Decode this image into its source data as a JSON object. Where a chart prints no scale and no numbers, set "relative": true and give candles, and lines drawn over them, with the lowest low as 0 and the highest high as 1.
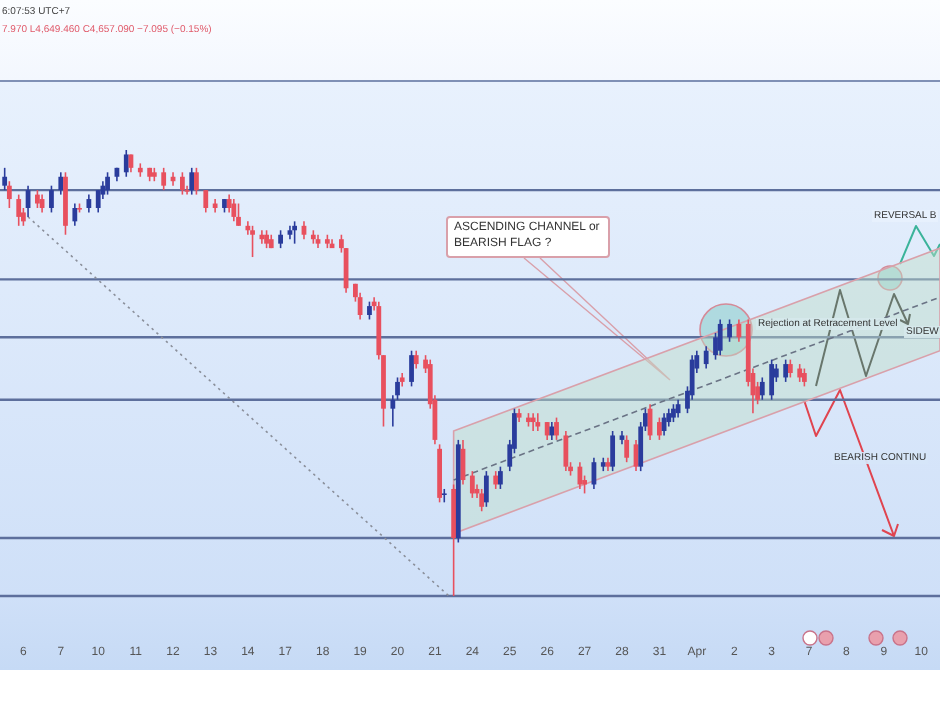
{
  "chart_data": {
    "type": "candlestick",
    "relative": true,
    "categories": [
      null,
      null,
      null,
      null,
      null,
      "6",
      null,
      null,
      null,
      null,
      null,
      null,
      null,
      "7",
      null,
      null,
      null,
      null,
      null,
      null,
      null,
      "10",
      null,
      null,
      null,
      null,
      null,
      null,
      null,
      "11",
      null,
      null,
      null,
      null,
      null,
      null,
      null,
      "12",
      null,
      null,
      null,
      null,
      null,
      null,
      null,
      "13",
      null,
      null,
      null,
      null,
      null,
      null,
      null,
      "14",
      null,
      null,
      null,
      null,
      null,
      null,
      null,
      "17",
      null,
      null,
      null,
      null,
      null,
      null,
      null,
      "18",
      null,
      null,
      null,
      null,
      null,
      null,
      null,
      "19",
      null,
      null,
      null,
      null,
      null,
      null,
      null,
      "20",
      null,
      null,
      null,
      null,
      null,
      null,
      null,
      "21",
      null,
      null,
      null,
      null,
      null,
      null,
      null,
      "24",
      null,
      null,
      null,
      null,
      null,
      null,
      null,
      "25",
      null,
      null,
      null,
      null,
      null,
      null,
      null,
      "26",
      null,
      null,
      null,
      null,
      null,
      null,
      null,
      "27",
      null,
      null,
      null,
      null,
      null,
      null,
      null,
      "28",
      null,
      null,
      null,
      null,
      null,
      null,
      null,
      "31",
      null,
      null,
      null,
      null,
      null,
      null,
      null,
      "Apr",
      null,
      null,
      null,
      null,
      null,
      null,
      null,
      "2",
      null,
      null,
      null,
      null,
      null,
      null,
      null,
      "3",
      null,
      null,
      null,
      null,
      null,
      null,
      null,
      "7",
      null,
      null,
      null,
      null,
      null,
      null,
      null,
      "8",
      null,
      null,
      null,
      null,
      null,
      null,
      null,
      "9",
      null,
      null,
      null,
      null,
      null,
      null,
      null,
      "10",
      null,
      null,
      null,
      null
    ],
    "ohlc": [
      null,
      [
        0.92,
        0.96,
        0.91,
        0.94
      ],
      [
        0.92,
        0.93,
        0.87,
        0.89
      ],
      null,
      [
        0.89,
        0.9,
        0.83,
        0.85
      ],
      [
        0.86,
        0.87,
        0.83,
        0.84
      ],
      [
        0.87,
        0.92,
        0.85,
        0.91
      ],
      null,
      [
        0.9,
        0.91,
        0.87,
        0.88
      ],
      [
        0.89,
        0.9,
        0.86,
        0.87
      ],
      null,
      [
        0.87,
        0.92,
        0.86,
        0.91
      ],
      null,
      [
        0.91,
        0.95,
        0.9,
        0.94
      ],
      [
        0.94,
        0.95,
        0.81,
        0.83
      ],
      null,
      [
        0.84,
        0.88,
        0.83,
        0.87
      ],
      [
        0.87,
        0.88,
        0.86,
        0.87
      ],
      null,
      [
        0.87,
        0.9,
        0.86,
        0.89
      ],
      null,
      [
        0.87,
        0.91,
        0.86,
        0.91
      ],
      [
        0.9,
        0.93,
        0.89,
        0.92
      ],
      [
        0.91,
        0.95,
        0.9,
        0.94
      ],
      null,
      [
        0.94,
        0.96,
        0.93,
        0.96
      ],
      null,
      [
        0.95,
        1,
        0.94,
        0.99
      ],
      [
        0.99,
        0.99,
        0.95,
        0.96
      ],
      null,
      [
        0.96,
        0.97,
        0.94,
        0.95
      ],
      null,
      [
        0.96,
        0.96,
        0.93,
        0.94
      ],
      [
        0.95,
        0.96,
        0.93,
        0.94
      ],
      null,
      [
        0.95,
        0.96,
        0.91,
        0.92
      ],
      null,
      [
        0.94,
        0.95,
        0.92,
        0.93
      ],
      null,
      [
        0.94,
        0.95,
        0.9,
        0.91
      ],
      [
        0.91,
        0.92,
        0.9,
        0.91
      ],
      [
        0.91,
        0.96,
        0.9,
        0.95
      ],
      [
        0.95,
        0.96,
        0.9,
        0.91
      ],
      null,
      [
        0.91,
        0.91,
        0.86,
        0.87
      ],
      null,
      [
        0.88,
        0.89,
        0.86,
        0.87
      ],
      null,
      [
        0.87,
        0.89,
        0.86,
        0.89
      ],
      [
        0.89,
        0.9,
        0.86,
        0.87
      ],
      [
        0.88,
        0.89,
        0.84,
        0.85
      ],
      [
        0.85,
        0.88,
        0.83,
        0.83
      ],
      null,
      [
        0.83,
        0.84,
        0.81,
        0.82
      ],
      [
        0.82,
        0.83,
        0.76,
        0.81
      ],
      null,
      [
        0.81,
        0.82,
        0.79,
        0.8
      ],
      [
        0.81,
        0.82,
        0.78,
        0.79
      ],
      [
        0.8,
        0.81,
        0.78,
        0.78
      ],
      null,
      [
        0.79,
        0.82,
        0.78,
        0.81
      ],
      null,
      [
        0.81,
        0.83,
        0.8,
        0.82
      ],
      [
        0.82,
        0.84,
        0.79,
        0.83
      ],
      null,
      [
        0.83,
        0.84,
        0.8,
        0.81
      ],
      null,
      [
        0.81,
        0.82,
        0.79,
        0.8
      ],
      [
        0.8,
        0.81,
        0.78,
        0.79
      ],
      null,
      [
        0.8,
        0.81,
        0.78,
        0.79
      ],
      [
        0.79,
        0.8,
        0.78,
        0.78
      ],
      null,
      [
        0.8,
        0.81,
        0.77,
        0.78
      ],
      [
        0.78,
        0.78,
        0.68,
        0.69
      ],
      null,
      [
        0.7,
        0.7,
        0.66,
        0.67
      ],
      [
        0.67,
        0.68,
        0.62,
        0.63
      ],
      null,
      [
        0.63,
        0.66,
        0.62,
        0.65
      ],
      [
        0.66,
        0.67,
        0.64,
        0.65
      ],
      [
        0.65,
        0.66,
        0.53,
        0.54
      ],
      [
        0.54,
        0.54,
        0.38,
        0.42
      ],
      null,
      [
        0.42,
        0.45,
        0.38,
        0.44
      ],
      [
        0.45,
        0.49,
        0.44,
        0.48
      ],
      [
        0.49,
        0.5,
        0.47,
        0.48
      ],
      null,
      [
        0.48,
        0.55,
        0.47,
        0.54
      ],
      [
        0.54,
        0.55,
        0.51,
        0.52
      ],
      null,
      [
        0.53,
        0.54,
        0.5,
        0.51
      ],
      [
        0.52,
        0.53,
        0.42,
        0.43
      ],
      [
        0.44,
        0.45,
        0.34,
        0.35
      ],
      [
        0.33,
        0.34,
        0.21,
        0.22
      ],
      [
        0.23,
        0.24,
        0.21,
        0.23
      ],
      null,
      [
        0.24,
        0.25,
        0,
        0.13
      ],
      [
        0.13,
        0.35,
        0.12,
        0.34
      ],
      [
        0.33,
        0.35,
        0.25,
        0.26
      ],
      null,
      [
        0.27,
        0.28,
        0.22,
        0.23
      ],
      [
        0.24,
        0.25,
        0.22,
        0.23
      ],
      [
        0.23,
        0.24,
        0.19,
        0.2
      ],
      [
        0.21,
        0.28,
        0.2,
        0.27
      ],
      null,
      [
        0.27,
        0.28,
        0.24,
        0.25
      ],
      [
        0.25,
        0.29,
        0.24,
        0.28
      ],
      null,
      [
        0.29,
        0.35,
        0.28,
        0.34
      ],
      [
        0.33,
        0.42,
        0.32,
        0.41
      ],
      [
        0.41,
        0.42,
        0.39,
        0.4
      ],
      null,
      [
        0.4,
        0.41,
        0.38,
        0.39
      ],
      [
        0.4,
        0.41,
        0.37,
        0.39
      ],
      [
        0.39,
        0.41,
        0.37,
        0.38
      ],
      null,
      [
        0.39,
        0.39,
        0.35,
        0.36
      ],
      [
        0.36,
        0.39,
        0.35,
        0.38
      ],
      [
        0.39,
        0.4,
        0.35,
        0.36
      ],
      null,
      [
        0.36,
        0.37,
        0.28,
        0.29
      ],
      [
        0.29,
        0.3,
        0.27,
        0.28
      ],
      null,
      [
        0.29,
        0.3,
        0.24,
        0.25
      ],
      [
        0.26,
        0.27,
        0.23,
        0.25
      ],
      null,
      [
        0.25,
        0.31,
        0.24,
        0.3
      ],
      null,
      [
        0.29,
        0.31,
        0.28,
        0.3
      ],
      [
        0.3,
        0.31,
        0.28,
        0.29
      ],
      [
        0.29,
        0.37,
        0.28,
        0.36
      ],
      null,
      [
        0.35,
        0.37,
        0.34,
        0.36
      ],
      [
        0.35,
        0.36,
        0.3,
        0.31
      ],
      null,
      [
        0.34,
        0.35,
        0.28,
        0.29
      ],
      [
        0.29,
        0.39,
        0.28,
        0.38
      ],
      [
        0.38,
        0.42,
        0.37,
        0.41
      ],
      [
        0.42,
        0.43,
        0.35,
        0.36
      ],
      null,
      [
        0.39,
        0.4,
        0.35,
        0.36
      ],
      [
        0.37,
        0.41,
        0.36,
        0.4
      ],
      [
        0.39,
        0.42,
        0.38,
        0.41
      ],
      [
        0.4,
        0.43,
        0.39,
        0.42
      ],
      [
        0.41,
        0.44,
        0.4,
        0.43
      ],
      null,
      [
        0.42,
        0.47,
        0.41,
        0.46
      ],
      [
        0.45,
        0.54,
        0.44,
        0.53
      ],
      [
        0.51,
        0.55,
        0.5,
        0.54
      ],
      null,
      [
        0.52,
        0.56,
        0.51,
        0.55
      ],
      null,
      [
        0.54,
        0.59,
        0.53,
        0.58
      ],
      [
        0.55,
        0.62,
        0.54,
        0.61
      ],
      null,
      [
        0.58,
        0.62,
        0.57,
        0.61
      ],
      null,
      [
        0.61,
        0.62,
        0.57,
        0.58
      ],
      null,
      [
        0.61,
        0.62,
        0.47,
        0.48
      ],
      [
        0.5,
        0.51,
        0.41,
        0.45
      ],
      [
        0.47,
        0.48,
        0.43,
        0.44
      ],
      [
        0.45,
        0.49,
        0.44,
        0.48
      ],
      null,
      [
        0.45,
        0.53,
        0.44,
        0.52
      ],
      [
        0.49,
        0.52,
        0.48,
        0.51
      ],
      null,
      [
        0.49,
        0.53,
        0.48,
        0.52
      ],
      [
        0.52,
        0.53,
        0.49,
        0.5
      ],
      null,
      [
        0.51,
        0.52,
        0.48,
        0.49
      ],
      [
        0.5,
        0.51,
        0.47,
        0.48
      ],
      null,
      null,
      null,
      null,
      null,
      null,
      null,
      null,
      null,
      null,
      null,
      null,
      null,
      null,
      null,
      null,
      null,
      null,
      null,
      null,
      null,
      null,
      null,
      null,
      null,
      null,
      null,
      null,
      null
    ],
    "colors": [
      null,
      "#2a3c9c",
      "#e8505e",
      null,
      "#e8505e",
      "#e8505e",
      "#2a3c9c",
      null,
      "#e8505e",
      "#e8505e",
      null,
      "#2a3c9c",
      null,
      "#2a3c9c",
      "#e8505e",
      null,
      "#2a3c9c",
      "#e8505e",
      null,
      "#2a3c9c",
      null,
      "#2a3c9c",
      "#2a3c9c",
      "#2a3c9c",
      null,
      "#2a3c9c",
      null,
      "#2a3c9c",
      "#e8505e",
      null,
      "#e8505e",
      null,
      "#e8505e",
      "#e8505e",
      null,
      "#e8505e",
      null,
      "#e8505e",
      null,
      "#e8505e",
      "#e8505e",
      "#2a3c9c",
      "#e8505e",
      null,
      "#e8505e",
      null,
      "#e8505e",
      null,
      "#2a3c9c",
      "#e8505e",
      "#e8505e",
      "#e8505e",
      null,
      "#e8505e",
      "#e8505e",
      null,
      "#e8505e",
      "#e8505e",
      "#e8505e",
      null,
      "#2a3c9c",
      null,
      "#2a3c9c",
      "#2a3c9c",
      null,
      "#e8505e",
      null,
      "#e8505e",
      "#e8505e",
      null,
      "#e8505e",
      "#e8505e",
      null,
      "#e8505e",
      "#e8505e",
      null,
      "#e8505e",
      "#e8505e",
      null,
      "#2a3c9c",
      "#e8505e",
      "#e8505e",
      "#e8505e",
      null,
      "#2a3c9c",
      "#2a3c9c",
      "#e8505e",
      null,
      "#2a3c9c",
      "#e8505e",
      null,
      "#e8505e",
      "#e8505e",
      "#e8505e",
      "#e8505e",
      "#2a3c9c",
      null,
      "#e8505e",
      "#2a3c9c",
      "#e8505e",
      null,
      "#e8505e",
      "#e8505e",
      "#e8505e",
      "#2a3c9c",
      null,
      "#e8505e",
      "#2a3c9c",
      null,
      "#2a3c9c",
      "#2a3c9c",
      "#e8505e",
      null,
      "#e8505e",
      "#e8505e",
      "#e8505e",
      null,
      "#e8505e",
      "#2a3c9c",
      "#e8505e",
      null,
      "#e8505e",
      "#e8505e",
      null,
      "#e8505e",
      "#e8505e",
      null,
      "#2a3c9c",
      null,
      "#2a3c9c",
      "#e8505e",
      "#2a3c9c",
      null,
      "#2a3c9c",
      "#e8505e",
      null,
      "#e8505e",
      "#2a3c9c",
      "#2a3c9c",
      "#e8505e",
      null,
      "#e8505e",
      "#2a3c9c",
      "#2a3c9c",
      "#2a3c9c",
      "#2a3c9c",
      null,
      "#2a3c9c",
      "#2a3c9c",
      "#2a3c9c",
      null,
      "#2a3c9c",
      null,
      "#2a3c9c",
      "#2a3c9c",
      null,
      "#2a3c9c",
      null,
      "#e8505e",
      null,
      "#e8505e",
      "#e8505e",
      "#e8505e",
      "#2a3c9c",
      null,
      "#2a3c9c",
      "#2a3c9c",
      null,
      "#2a3c9c",
      "#e8505e",
      null,
      "#e8505e",
      "#e8505e",
      null,
      null,
      null,
      null,
      null,
      null,
      null,
      null,
      null,
      null,
      null,
      null,
      null,
      null,
      null,
      null,
      null,
      null,
      null,
      null,
      null,
      null,
      null,
      null,
      null,
      null,
      null,
      null,
      null
    ],
    "series": [
      {
        "type": "line",
        "color": "#8a8f9a",
        "line_style": "dotted",
        "values": [
          null,
          null,
          null,
          null,
          null,
          null,
          0.85,
          null,
          null,
          null,
          null,
          null,
          null,
          null,
          null,
          null,
          null,
          null,
          null,
          null,
          null,
          null,
          null,
          null,
          null,
          null,
          null,
          null,
          null,
          null,
          null,
          null,
          null,
          null,
          null,
          null,
          null,
          null,
          null,
          null,
          null,
          null,
          null,
          null,
          null,
          null,
          null,
          null,
          null,
          null,
          null,
          null,
          null,
          null,
          null,
          null,
          null,
          null,
          null,
          null,
          null,
          null,
          null,
          null,
          null,
          null,
          null,
          null,
          null,
          null,
          null,
          null,
          null,
          null,
          null,
          null,
          null,
          null,
          null,
          null,
          null,
          null,
          null,
          null,
          null,
          null,
          null,
          null,
          null,
          null,
          null,
          null,
          null,
          null,
          null,
          null,
          0,
          null,
          null,
          null,
          null,
          null,
          null,
          null,
          null,
          null,
          null,
          null,
          null,
          null,
          null,
          null,
          null,
          null,
          null,
          null,
          null,
          null,
          null,
          null,
          null,
          null,
          null,
          null,
          null,
          null,
          null,
          null,
          null,
          null,
          null,
          null,
          null,
          null,
          null,
          null,
          null,
          null,
          null,
          null,
          null,
          null,
          null,
          null,
          null,
          null,
          null,
          null,
          null,
          null,
          null,
          null,
          null,
          null,
          null,
          null,
          null,
          null,
          null,
          null,
          null,
          null,
          null,
          null,
          null,
          null,
          null,
          null,
          null,
          null,
          null,
          null,
          null,
          null,
          null,
          null,
          null,
          null,
          null,
          null,
          null,
          null,
          null,
          null,
          null,
          null,
          null,
          null,
          null,
          null,
          null,
          null,
          null,
          null,
          null,
          null,
          null,
          null,
          null,
          null,
          null,
          null
        ]
      },
      {
        "type": "line",
        "color": "#6a7385",
        "line_style": "dashed",
        "values": [
          null,
          null,
          null,
          null,
          null,
          null,
          null,
          null,
          null,
          null,
          null,
          null,
          null,
          null,
          null,
          null,
          null,
          null,
          null,
          null,
          null,
          null,
          null,
          null,
          null,
          null,
          null,
          null,
          null,
          null,
          null,
          null,
          null,
          null,
          null,
          null,
          null,
          null,
          null,
          null,
          null,
          null,
          null,
          null,
          null,
          null,
          null,
          null,
          null,
          null,
          null,
          null,
          null,
          null,
          null,
          null,
          null,
          null,
          null,
          null,
          null,
          null,
          null,
          null,
          null,
          null,
          null,
          null,
          null,
          null,
          null,
          null,
          null,
          null,
          null,
          null,
          null,
          null,
          null,
          null,
          null,
          null,
          null,
          null,
          null,
          null,
          null,
          null,
          null,
          null,
          null,
          null,
          null,
          null,
          null,
          null,
          null,
          0.26,
          null,
          null,
          null,
          null,
          null,
          null,
          null,
          null,
          null,
          null,
          null,
          null,
          null,
          null,
          null,
          null,
          null,
          null,
          null,
          null,
          null,
          null,
          null,
          null,
          null,
          null,
          null,
          null,
          null,
          null,
          null,
          null,
          null,
          null,
          null,
          null,
          null,
          null,
          null,
          null,
          null,
          null,
          null,
          null,
          null,
          null,
          null,
          null,
          null,
          null,
          null,
          null,
          null,
          null,
          null,
          null,
          null,
          null,
          null,
          null,
          null,
          null,
          null,
          null,
          null,
          null,
          null,
          null,
          null,
          null,
          null,
          null,
          null,
          null,
          null,
          null,
          null,
          null,
          null,
          null,
          null,
          null,
          null,
          null,
          null,
          null,
          null,
          null,
          null,
          null,
          null,
          null,
          null,
          null,
          null,
          null,
          null,
          null,
          null,
          null,
          null,
          null,
          null,
          0.67
        ],
        "lower": [
          null,
          null,
          null,
          null,
          null,
          null,
          null,
          null,
          null,
          null,
          null,
          null,
          null,
          null,
          null,
          null,
          null,
          null,
          null,
          null,
          null,
          null,
          null,
          null,
          null,
          null,
          null,
          null,
          null,
          null,
          null,
          null,
          null,
          null,
          null,
          null,
          null,
          null,
          null,
          null,
          null,
          null,
          null,
          null,
          null,
          null,
          null,
          null,
          null,
          null,
          null,
          null,
          null,
          null,
          null,
          null,
          null,
          null,
          null,
          null,
          null,
          null,
          null,
          null,
          null,
          null,
          null,
          null,
          null,
          null,
          null,
          null,
          null,
          null,
          null,
          null,
          null,
          null,
          null,
          null,
          null,
          null,
          null,
          null,
          null,
          null,
          null,
          null,
          null,
          null,
          null,
          null,
          null,
          null,
          null,
          null,
          null,
          0.14,
          null,
          null,
          null,
          null,
          null,
          null,
          null,
          null,
          null,
          null,
          null,
          null,
          null,
          null,
          null,
          null,
          null,
          null,
          null,
          null,
          null,
          null,
          null,
          null,
          null,
          null,
          null,
          null,
          null,
          null,
          null,
          null,
          null,
          null,
          null,
          null,
          null,
          null,
          null,
          null,
          null,
          null,
          null,
          null,
          null,
          null,
          null,
          null,
          null,
          null,
          null,
          null,
          null,
          null,
          null,
          null,
          null,
          null,
          null,
          null,
          null,
          null,
          null,
          null,
          null,
          null,
          null,
          null,
          null,
          null,
          null,
          null,
          null,
          null,
          null,
          null,
          null,
          null,
          null,
          null,
          null,
          null,
          null,
          null,
          null,
          null,
          null,
          null,
          null,
          null,
          null,
          null,
          null,
          null,
          null,
          null,
          null,
          null,
          null,
          null,
          null,
          null,
          null,
          0.55
        ],
        "upper": [
          null,
          null,
          null,
          null,
          null,
          null,
          null,
          null,
          null,
          null,
          null,
          null,
          null,
          null,
          null,
          null,
          null,
          null,
          null,
          null,
          null,
          null,
          null,
          null,
          null,
          null,
          null,
          null,
          null,
          null,
          null,
          null,
          null,
          null,
          null,
          null,
          null,
          null,
          null,
          null,
          null,
          null,
          null,
          null,
          null,
          null,
          null,
          null,
          null,
          null,
          null,
          null,
          null,
          null,
          null,
          null,
          null,
          null,
          null,
          null,
          null,
          null,
          null,
          null,
          null,
          null,
          null,
          null,
          null,
          null,
          null,
          null,
          null,
          null,
          null,
          null,
          null,
          null,
          null,
          null,
          null,
          null,
          null,
          null,
          null,
          null,
          null,
          null,
          null,
          null,
          null,
          null,
          null,
          null,
          null,
          null,
          null,
          0.37,
          null,
          null,
          null,
          null,
          null,
          null,
          null,
          null,
          null,
          null,
          null,
          null,
          null,
          null,
          null,
          null,
          null,
          null,
          null,
          null,
          null,
          null,
          null,
          null,
          null,
          null,
          null,
          null,
          null,
          null,
          null,
          null,
          null,
          null,
          null,
          null,
          null,
          null,
          null,
          null,
          null,
          null,
          null,
          null,
          null,
          null,
          null,
          null,
          null,
          null,
          null,
          null,
          null,
          null,
          null,
          null,
          null,
          null,
          null,
          null,
          null,
          null,
          null,
          null,
          null,
          null,
          null,
          null,
          null,
          null,
          null,
          null,
          null,
          null,
          null,
          null,
          null,
          null,
          null,
          null,
          null,
          null,
          null,
          null,
          null,
          null,
          null,
          null,
          null,
          null,
          null,
          null,
          null,
          null,
          null,
          null,
          null,
          null,
          null,
          null,
          null,
          null,
          null,
          0.78
        ]
      }
    ],
    "ref_lines": [
      {
        "axis": "y",
        "value": 0.91,
        "color": "#5d6f9c"
      },
      {
        "axis": "y",
        "value": 0.71,
        "color": "#5d6f9c"
      },
      {
        "axis": "y",
        "value": 0.58,
        "color": "#5d6f9c"
      },
      {
        "axis": "y",
        "value": 0.44,
        "color": "#5d6f9c"
      },
      {
        "axis": "y",
        "value": 0.13,
        "color": "#5d6f9c"
      },
      {
        "axis": "y",
        "value": 0,
        "color": "#5d6f9c"
      }
    ],
    "annotations": [
      "6:07:53 UTC+7",
      "7.970 L4,649.460 C4,657.090 −7.095 (−0.15%)",
      "ASCENDING CHANNEL or BEARISH FLAG ?",
      "Rejection at Retracement Level",
      "REVERSAL B",
      "SIDEW",
      "BEARISH CONTINU"
    ]
  }
}
